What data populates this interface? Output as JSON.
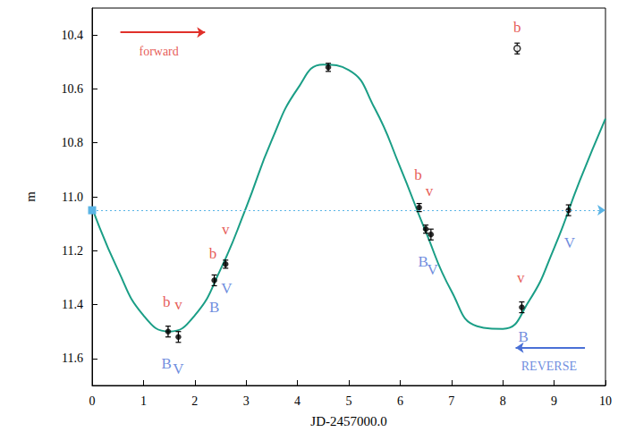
{
  "chart_data": {
    "type": "scatter",
    "xlabel": "JD-2457000.0",
    "ylabel": "m",
    "xlim": [
      0,
      10
    ],
    "ylim": [
      11.7,
      10.3
    ],
    "xticks": [
      0,
      1,
      2,
      3,
      4,
      5,
      6,
      7,
      8,
      9,
      10
    ],
    "yticks": [
      10.4,
      10.6,
      10.8,
      {
        "value": 11,
        "label": "11.0"
      },
      11.2,
      11.4,
      11.6
    ],
    "grid": false,
    "series": [
      {
        "type": "line",
        "color": "#1a9e86",
        "line_style": "solid",
        "x": [
          0,
          0.5,
          1,
          1.5,
          2,
          2.5,
          3,
          3.5,
          4,
          4.5,
          5,
          5.5,
          6,
          6.5,
          7,
          7.5,
          8,
          8.5,
          9,
          9.5,
          10
        ],
        "values": [
          11.04,
          11.27,
          11.44,
          11.5,
          11.44,
          11.27,
          11.04,
          10.79,
          10.6,
          10.51,
          10.53,
          10.67,
          10.89,
          11.13,
          11.35,
          11.48,
          11.49,
          11.39,
          11.19,
          10.94,
          10.71
        ]
      },
      {
        "type": "scatter",
        "color": "#000000",
        "marker": "filled",
        "x": [
          1.48,
          1.68,
          2.38,
          2.6,
          4.6,
          6.37,
          6.5,
          6.6,
          8.37,
          9.28
        ],
        "values": [
          11.5,
          11.52,
          11.31,
          11.25,
          10.52,
          11.04,
          11.12,
          11.14,
          11.41,
          11.05
        ],
        "errors": [
          0.02,
          0.02,
          0.02,
          0.015,
          0.015,
          0.015,
          0.015,
          0.02,
          0.02,
          0.02
        ]
      },
      {
        "type": "scatter",
        "color": "#000000",
        "marker": "open",
        "x": [
          8.28
        ],
        "values": [
          10.45
        ],
        "errors": [
          0.02
        ]
      },
      {
        "type": "hline",
        "color": "#5ab4e5",
        "line_style": "dotted",
        "values": [
          11.055
        ]
      }
    ],
    "annotations": [
      {
        "text": "b",
        "x": 1.45,
        "y": 11.39,
        "color": "#e0302a"
      },
      {
        "text": "v",
        "x": 1.68,
        "y": 11.4,
        "color": "#e0302a"
      },
      {
        "text": "b",
        "x": 2.35,
        "y": 11.21,
        "color": "#e0302a"
      },
      {
        "text": "v",
        "x": 2.6,
        "y": 11.12,
        "color": "#e0302a"
      },
      {
        "text": "b",
        "x": 6.35,
        "y": 10.92,
        "color": "#e0302a"
      },
      {
        "text": "v",
        "x": 6.57,
        "y": 10.98,
        "color": "#e0302a"
      },
      {
        "text": "v",
        "x": 8.35,
        "y": 11.3,
        "color": "#e0302a"
      },
      {
        "text": "b",
        "x": 8.28,
        "y": 10.37,
        "color": "#e0302a"
      },
      {
        "text": "B",
        "x": 1.45,
        "y": 11.62,
        "color": "#4a70d6"
      },
      {
        "text": "V",
        "x": 1.68,
        "y": 11.64,
        "color": "#4a70d6"
      },
      {
        "text": "B",
        "x": 2.38,
        "y": 11.41,
        "color": "#4a70d6"
      },
      {
        "text": "V",
        "x": 2.62,
        "y": 11.34,
        "color": "#4a70d6"
      },
      {
        "text": "B",
        "x": 6.45,
        "y": 11.24,
        "color": "#4a70d6"
      },
      {
        "text": "V",
        "x": 6.63,
        "y": 11.27,
        "color": "#4a70d6"
      },
      {
        "text": "B",
        "x": 8.4,
        "y": 11.52,
        "color": "#4a70d6"
      },
      {
        "text": "V",
        "x": 9.3,
        "y": 11.17,
        "color": "#4a70d6"
      },
      {
        "text": "forward",
        "x": 1.3,
        "y": 10.46,
        "color": "#e0302a"
      },
      {
        "text": "REVERSE",
        "x": 8.9,
        "y": 11.63,
        "color": "#4a70d6"
      }
    ],
    "arrows": [
      {
        "x": [
          0.55,
          2.2
        ],
        "y": [
          10.39,
          10.39
        ],
        "color": "#e0302a"
      },
      {
        "x": [
          9.6,
          8.25
        ],
        "y": [
          11.56,
          11.56
        ],
        "color": "#4a70d6"
      }
    ]
  }
}
